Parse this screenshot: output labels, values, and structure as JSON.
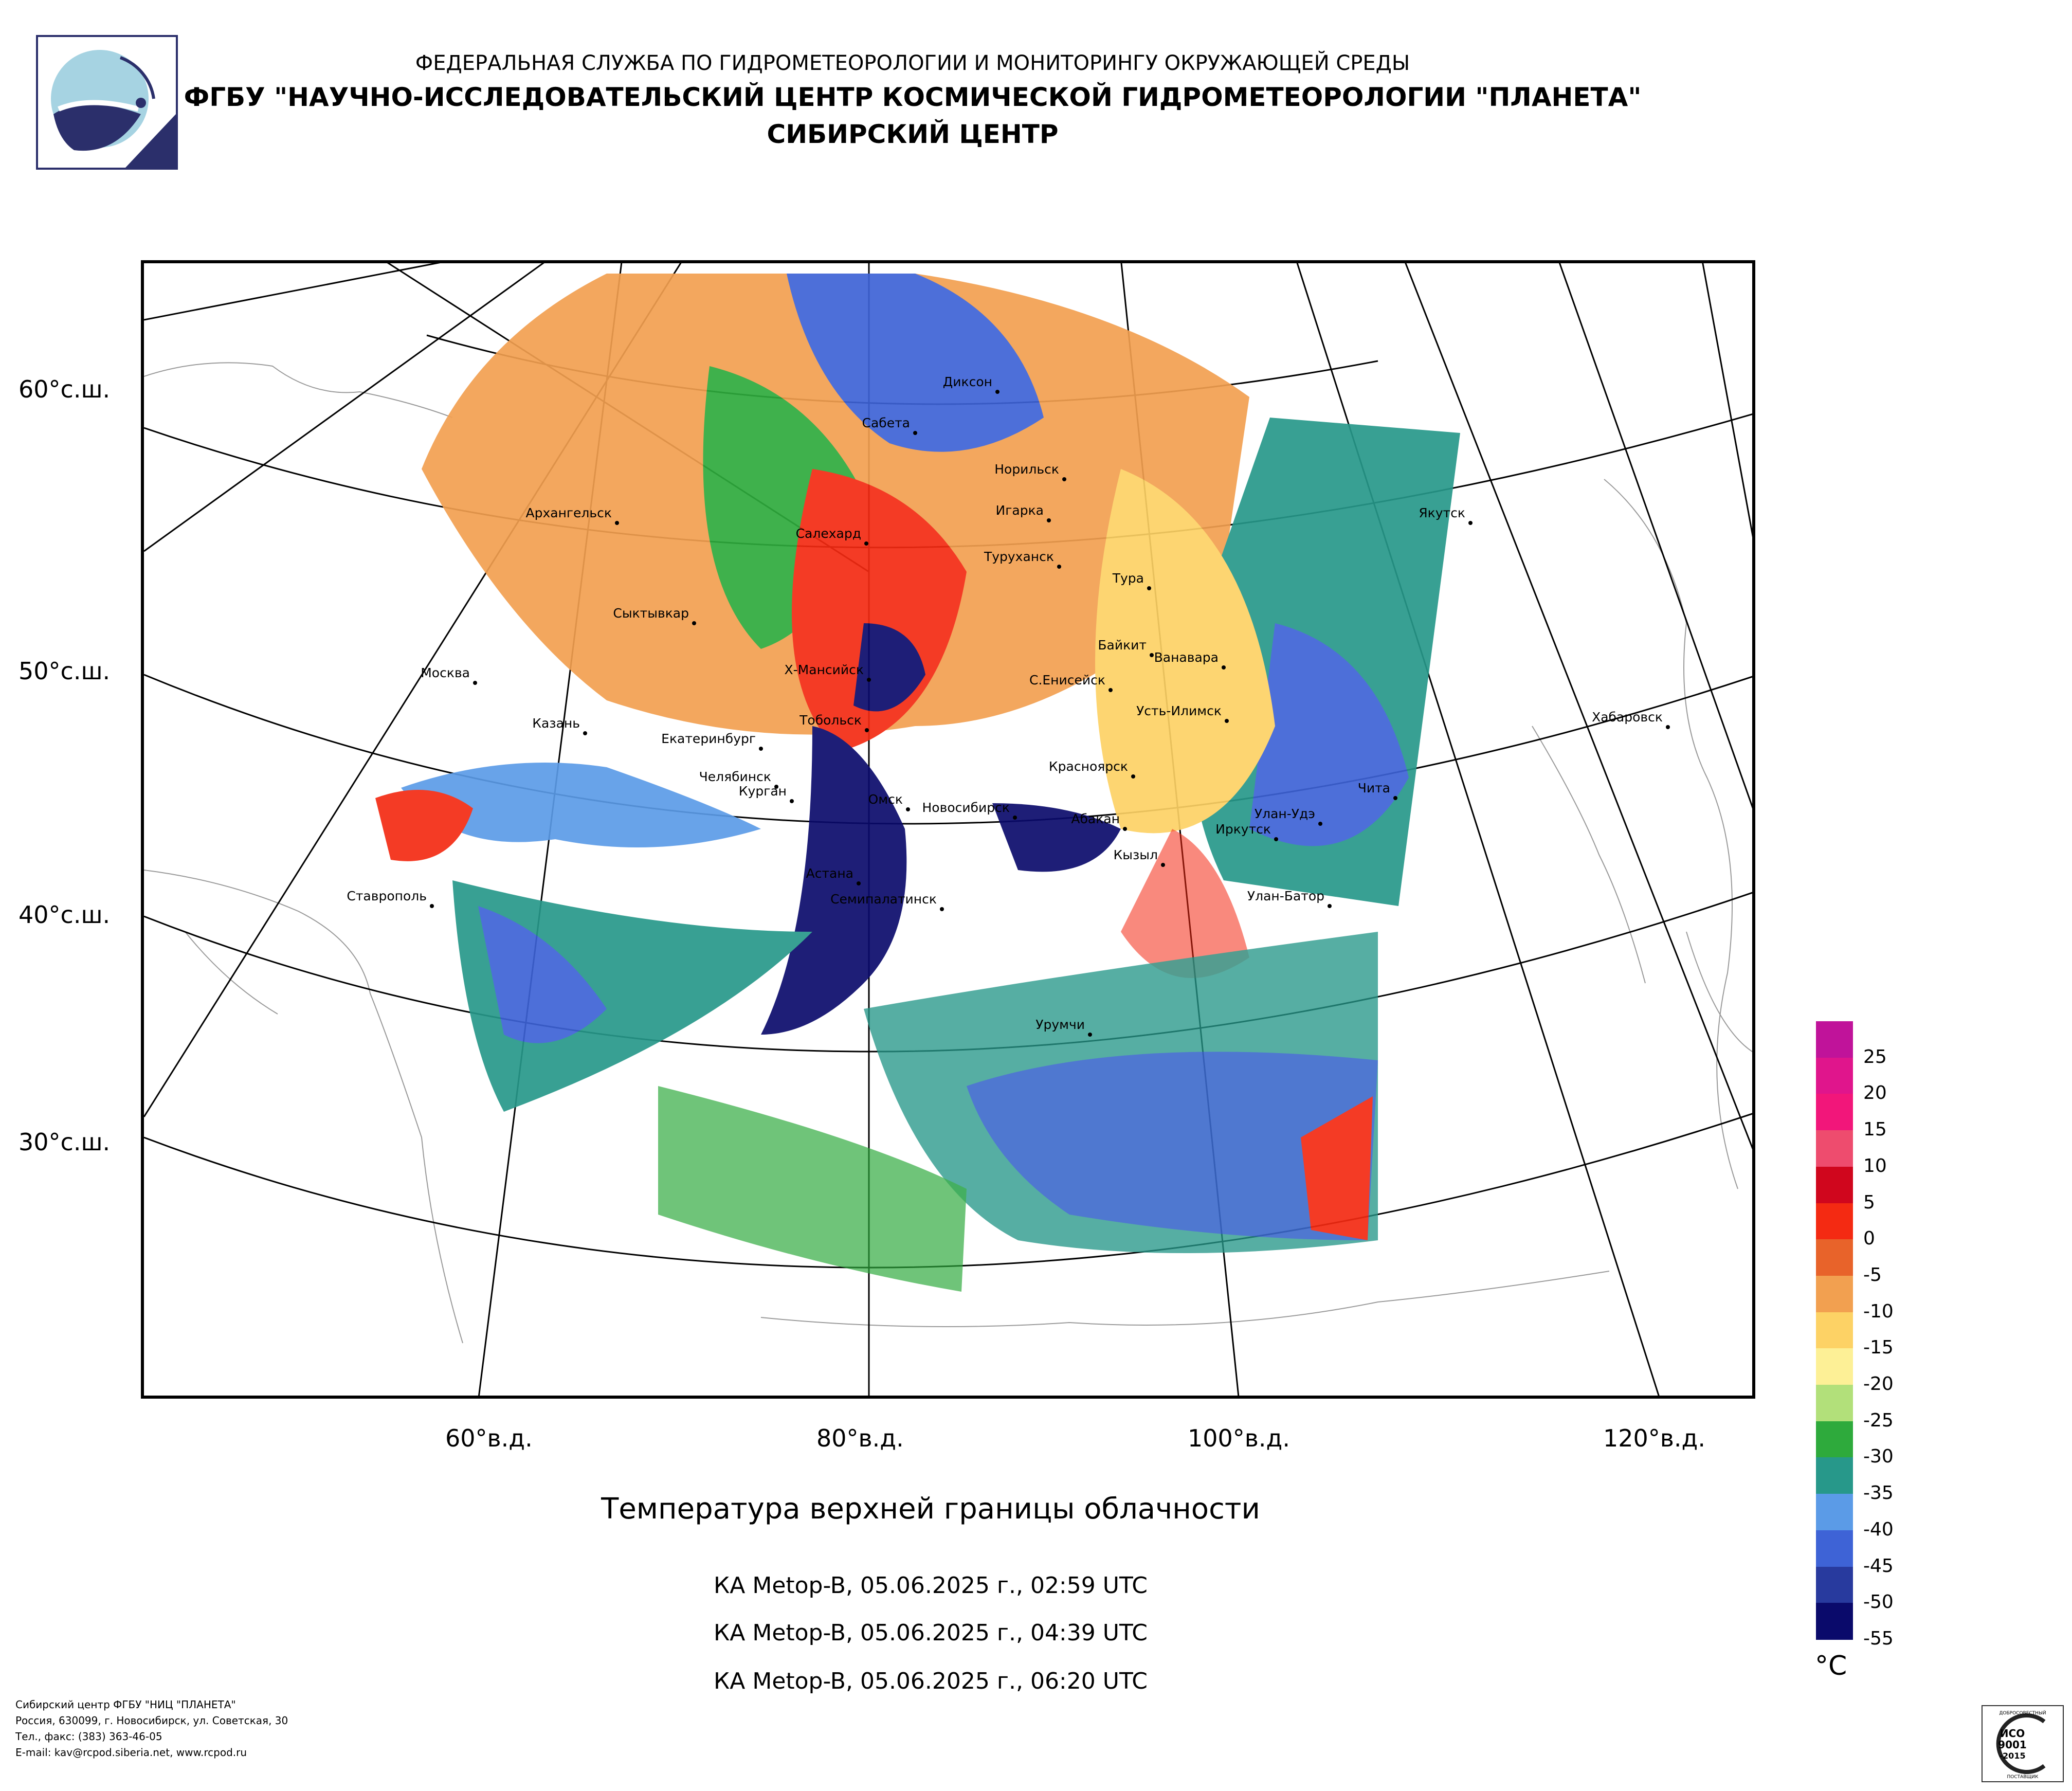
{
  "header": {
    "line1": "ФЕДЕРАЛЬНАЯ СЛУЖБА ПО ГИДРОМЕТЕОРОЛОГИИ И МОНИТОРИНГУ ОКРУЖАЮЩЕЙ СРЕДЫ",
    "line2": "ФГБУ \"НАУЧНО-ИССЛЕДОВАТЕЛЬСКИЙ ЦЕНТР КОСМИЧЕСКОЙ ГИДРОМЕТЕОРОЛОГИИ \"ПЛАНЕТА\"",
    "line3": "СИБИРСКИЙ ЦЕНТР"
  },
  "map": {
    "lat_labels": [
      "60°с.ш.",
      "50°с.ш.",
      "40°с.ш.",
      "30°с.ш."
    ],
    "lon_labels": [
      "60°в.д.",
      "80°в.д.",
      "100°в.д.",
      "120°в.д."
    ],
    "cities": [
      "Диксон",
      "Сабета",
      "Норильск",
      "Игарка",
      "Салехард",
      "Туруханск",
      "Тура",
      "Якутск",
      "Архангельск",
      "Сыктывкар",
      "Байкит",
      "Ванавара",
      "Х-Мансийск",
      "С.Енисейск",
      "Москва",
      "Усть-Илимск",
      "Казань",
      "Тобольск",
      "Екатеринбург",
      "Хабаровск",
      "Красноярск",
      "Челябинск",
      "Курган",
      "Чита",
      "Омск",
      "Новосибирск",
      "Абакан",
      "Улан-Удэ",
      "Иркутск",
      "Кызыл",
      "Астана",
      "Ставрополь",
      "Семипалатинск",
      "Улан-Батор",
      "Урумчи"
    ]
  },
  "caption": {
    "title": "Температура верхней границы облачности",
    "passes": [
      "КА Metop-B, 05.06.2025 г., 02:59 UTC",
      "КА Metop-B, 05.06.2025 г., 04:39 UTC",
      "КА Metop-B, 05.06.2025 г., 06:20 UTC"
    ]
  },
  "colorscale": {
    "unit": "°C",
    "tick_labels": [
      "25",
      "20",
      "15",
      "10",
      "5",
      "0",
      "-5",
      "-10",
      "-15",
      "-20",
      "-25",
      "-30",
      "-35",
      "-40",
      "-45",
      "-50",
      "-55"
    ],
    "colors": [
      "#c0139a",
      "#e0158c",
      "#f2167a",
      "#ee4c6e",
      "#d0061d",
      "#f42a12",
      "#e8632a",
      "#f2a050",
      "#fdd265",
      "#fdf096",
      "#b2e07a",
      "#2eaa3c",
      "#27988a",
      "#5b9be7",
      "#3e63d6",
      "#283a9e",
      "#0a0a6b"
    ]
  },
  "footer": {
    "lines": [
      "Сибирский центр ФГБУ \"НИЦ \"ПЛАНЕТА\"",
      "Россия, 630099, г. Новосибирск, ул. Советская, 30",
      "Тел., факс: (383) 363-46-05",
      "E-mail: kav@rcpod.siberia.net, www.rcpod.ru"
    ]
  },
  "cert": {
    "top": "ДОБРОСОВЕСТНЫЙ",
    "mid1": "ИСО",
    "mid2": "9001",
    "mid3": "-2015",
    "bottom": "ПОСТАВЩИК"
  }
}
